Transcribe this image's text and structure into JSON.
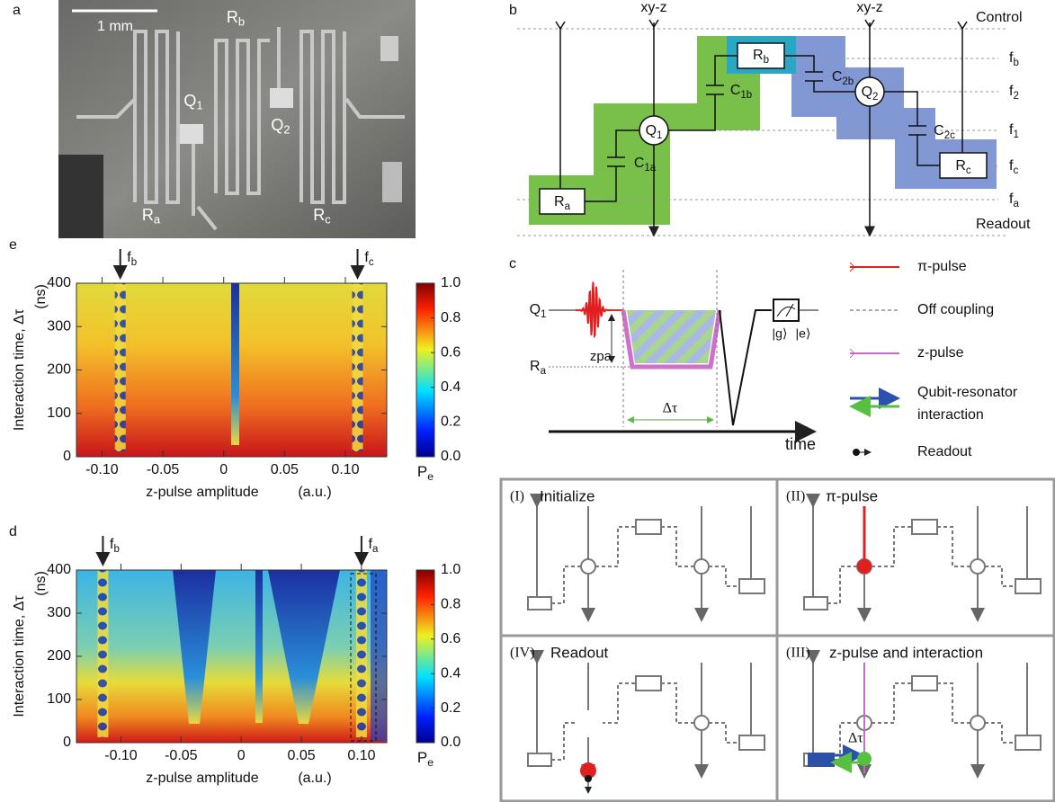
{
  "panel_a": {
    "label": "a",
    "scale_bar": "1 mm",
    "Ra": {
      "main": "R",
      "sub": "a"
    },
    "Rb": {
      "main": "R",
      "sub": "b"
    },
    "Rc": {
      "main": "R",
      "sub": "c"
    },
    "Q1": {
      "main": "Q",
      "sub": "1"
    },
    "Q2": {
      "main": "Q",
      "sub": "2"
    }
  },
  "panel_b": {
    "label": "b",
    "xy_z": [
      "xy-z",
      "xy-z"
    ],
    "control": "Control",
    "readout": "Readout",
    "fb": {
      "main": "f",
      "sub": "b"
    },
    "f2": {
      "main": "f",
      "sub": "2"
    },
    "f1": {
      "main": "f",
      "sub": "1"
    },
    "fc": {
      "main": "f",
      "sub": "c"
    },
    "fa": {
      "main": "f",
      "sub": "a"
    },
    "Ra": {
      "main": "R",
      "sub": "a"
    },
    "Rb": {
      "main": "R",
      "sub": "b"
    },
    "Rc": {
      "main": "R",
      "sub": "c"
    },
    "Q1": {
      "main": "Q",
      "sub": "1"
    },
    "Q2": {
      "main": "Q",
      "sub": "2"
    },
    "C1a": {
      "main": "C",
      "sub": "1a"
    },
    "C1b": {
      "main": "C",
      "sub": "1b"
    },
    "C2b": {
      "main": "C",
      "sub": "2b"
    },
    "C2c": {
      "main": "C",
      "sub": "2c"
    }
  },
  "panel_c": {
    "label": "c",
    "Q1": {
      "main": "Q",
      "sub": "1"
    },
    "Ra": {
      "main": "R",
      "sub": "a"
    },
    "zpa": "zpa",
    "dtau": "Δτ",
    "g": "|g⟩",
    "e": "|e⟩",
    "time": "time",
    "legend": [
      "π-pulse",
      "Off coupling",
      "z-pulse",
      [
        "Qubit-resonator",
        "interaction"
      ],
      "Readout"
    ]
  },
  "panel_e": {
    "label": "e",
    "ylabel": "Interaction time, Δτ",
    "yunit": "(ns)",
    "xlabel": "z-pulse amplitude",
    "xunit": "(a.u.)",
    "xlim": [
      -0.121,
      0.134
    ],
    "ylim": [
      0,
      400
    ],
    "xticks": [
      {
        "value": -0.1,
        "label": "-0.10"
      },
      {
        "value": -0.05,
        "label": "-0.05"
      },
      0,
      0.05,
      {
        "value": 0.1,
        "label": "0.10"
      }
    ],
    "yticks": [
      0,
      100,
      200,
      300,
      400
    ],
    "colorbar": {
      "lim": [
        0,
        1
      ],
      "ticks": [
        {
          "value": 0,
          "label": "0.0"
        },
        0.2,
        0.4,
        0.6,
        0.8,
        {
          "value": 1,
          "label": "1.0"
        }
      ],
      "label": {
        "main": "P",
        "sub": "e"
      }
    },
    "arrows": [
      {
        "x": -0.085,
        "label": {
          "main": "f",
          "sub": "b"
        }
      },
      {
        "x": 0.11,
        "label": {
          "main": "f",
          "sub": "c"
        }
      }
    ]
  },
  "panel_d": {
    "label": "d",
    "ylabel": "Interaction time, Δτ",
    "yunit": "(ns)",
    "xlabel": "z-pulse amplitude",
    "xunit": "(a.u.)",
    "xlim": [
      -0.137,
      0.121
    ],
    "ylim": [
      0,
      400
    ],
    "xticks": [
      {
        "value": -0.1,
        "label": "-0.10"
      },
      {
        "value": -0.05,
        "label": "-0.05"
      },
      0,
      0.05,
      {
        "value": 0.1,
        "label": "0.10"
      }
    ],
    "yticks": [
      0,
      100,
      200,
      300,
      400
    ],
    "colorbar": {
      "lim": [
        0,
        1
      ],
      "ticks": [
        {
          "value": 0,
          "label": "0.0"
        },
        0.2,
        0.4,
        0.6,
        0.8,
        {
          "value": 1,
          "label": "1.0"
        }
      ],
      "label": {
        "main": "P",
        "sub": "e"
      }
    },
    "arrows": [
      {
        "x": -0.115,
        "label": {
          "main": "f",
          "sub": "b"
        }
      },
      {
        "x": 0.1,
        "label": {
          "main": "f",
          "sub": "a"
        }
      }
    ]
  },
  "panel_steps": {
    "I": {
      "num": "(I)",
      "title": "Initialize"
    },
    "II": {
      "num": "(II)",
      "title": "π-pulse"
    },
    "III": {
      "num": "(III)",
      "title": "z-pulse and interaction",
      "dtau": "Δτ"
    },
    "IV": {
      "num": "(IV)",
      "title": "Readout"
    }
  }
}
